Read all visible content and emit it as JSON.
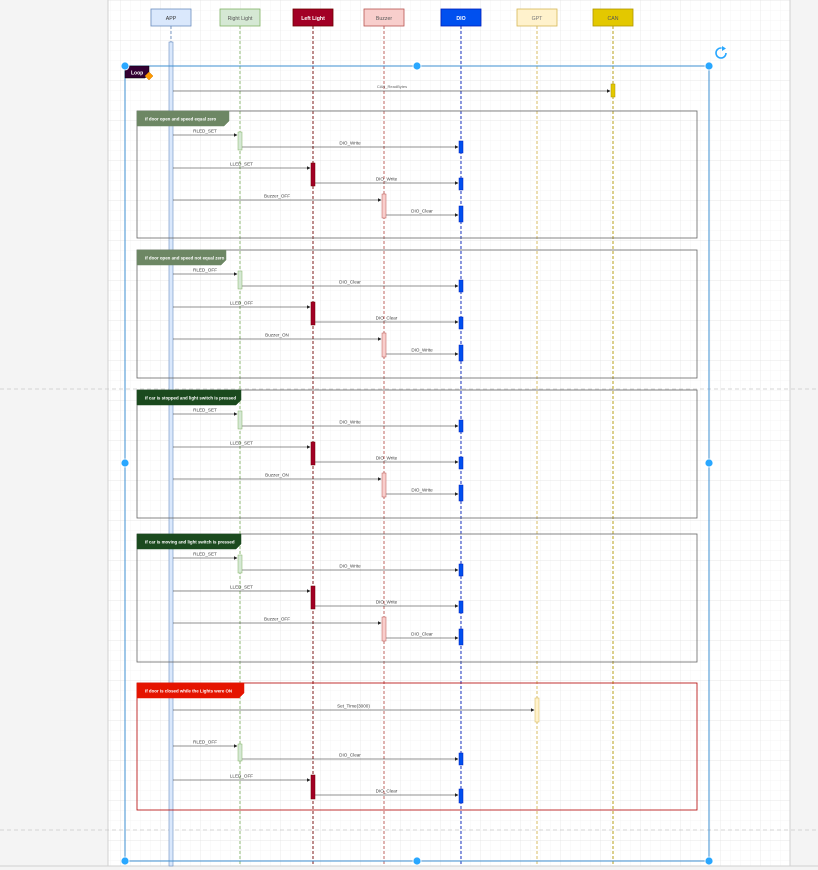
{
  "participants": [
    {
      "id": "app",
      "label": "APP",
      "fill": "#dae8fc",
      "stroke": "#6c8ebf",
      "text": "#333333"
    },
    {
      "id": "right-light",
      "label": "Right Light",
      "fill": "#d5e8d4",
      "stroke": "#82b366",
      "text": "#555555"
    },
    {
      "id": "left-light",
      "label": "Left Light",
      "fill": "#a20025",
      "stroke": "#6f0000",
      "text": "#ffffff"
    },
    {
      "id": "buzzer",
      "label": "Buzzer",
      "fill": "#f8cecc",
      "stroke": "#b85450",
      "text": "#555555"
    },
    {
      "id": "dio",
      "label": "DIO",
      "fill": "#0050ef",
      "stroke": "#001dbc",
      "text": "#ffffff"
    },
    {
      "id": "gpt",
      "label": "GPT",
      "fill": "#fff2cc",
      "stroke": "#d6b656",
      "text": "#777777"
    },
    {
      "id": "can",
      "label": "CAN",
      "fill": "#e3c800",
      "stroke": "#b09500",
      "text": "#555555"
    }
  ],
  "loop": {
    "label": "Loop"
  },
  "top_message": {
    "label": "CAN_ReadBytes"
  },
  "fragments": [
    {
      "title": "If door open and speed  equal zero",
      "header_color": "#6d8764",
      "border": "#666666",
      "messages": [
        {
          "label": "RLED_SET"
        },
        {
          "label": "DIO_Write"
        },
        {
          "label": "LLED_SET"
        },
        {
          "label": "DIO_Write"
        },
        {
          "label": "Buzzer_OFF"
        },
        {
          "label": "DIO_Clear"
        }
      ]
    },
    {
      "title": "If door open and speed  not equal zero",
      "header_color": "#6d8764",
      "border": "#666666",
      "messages": [
        {
          "label": "RLED_OFF"
        },
        {
          "label": "DIO_Clear"
        },
        {
          "label": "LLED_OFF"
        },
        {
          "label": "DIO_Clear"
        },
        {
          "label": "Buzzer_ON"
        },
        {
          "label": "DIO_Write"
        }
      ]
    },
    {
      "title": "If car is stopped and light switch is pressed",
      "header_color": "#1b4a1e",
      "border": "#666666",
      "messages": [
        {
          "label": "RLED_SET"
        },
        {
          "label": "DIO_Write"
        },
        {
          "label": "LLED_SET"
        },
        {
          "label": "DIO_Write"
        },
        {
          "label": "Buzzer_ON"
        },
        {
          "label": "DIO_Write"
        }
      ]
    },
    {
      "title": "If car is moving and light switch is pressed",
      "header_color": "#1b4a1e",
      "border": "#666666",
      "messages": [
        {
          "label": "RLED_SET"
        },
        {
          "label": "DIO_Write"
        },
        {
          "label": "LLED_SET"
        },
        {
          "label": "DIO_Write"
        },
        {
          "label": "Buzzer_OFF"
        },
        {
          "label": "DIO_Clear"
        }
      ]
    },
    {
      "title": "If door is closed while the Lights were ON",
      "header_color": "#e51400",
      "border": "#b20000",
      "messages": [
        {
          "label": "Set_Time(3000)"
        },
        {
          "label": "RLED_OFF"
        },
        {
          "label": "DIO_Clear"
        },
        {
          "label": "LLED_OFF"
        },
        {
          "label": "DIO_Clear"
        }
      ]
    }
  ]
}
